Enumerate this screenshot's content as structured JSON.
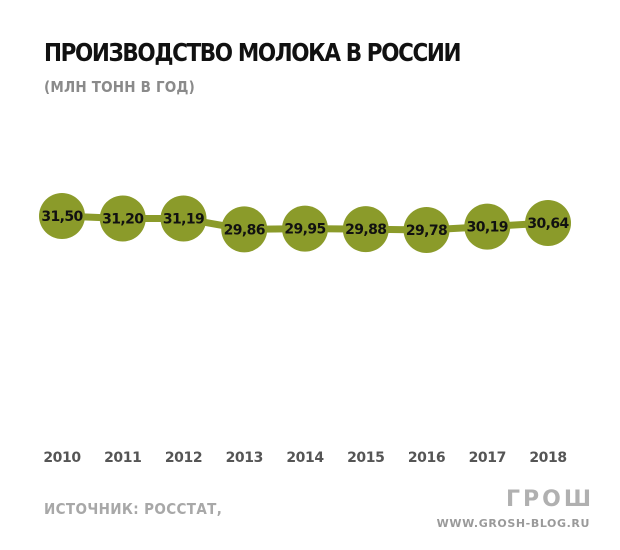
{
  "header": {
    "title": "ПРОИЗВОДСТВО МОЛОКА В РОССИИ",
    "subtitle": "(МЛН ТОНН В ГОД)"
  },
  "footer": {
    "source": "ИСТОЧНИК: РОССТАТ,",
    "logo": "ГРОШ",
    "site": "WWW.GROSH-BLOG.RU"
  },
  "colors": {
    "accent": "#8b9b2a",
    "point_label": "#111111",
    "year_label": "#555555"
  },
  "chart_data": {
    "type": "line",
    "title": "ПРОИЗВОДСТВО МОЛОКА В РОССИИ",
    "subtitle": "(МЛН ТОНН В ГОД)",
    "x": [
      "2010",
      "2011",
      "2012",
      "2013",
      "2014",
      "2015",
      "2016",
      "2017",
      "2018"
    ],
    "y": [
      31.5,
      31.2,
      31.19,
      29.86,
      29.95,
      29.88,
      29.78,
      30.19,
      30.64
    ],
    "data_labels": [
      "31,50",
      "31,20",
      "31,19",
      "29,86",
      "29,95",
      "29,88",
      "29,78",
      "30,19",
      "30,64"
    ],
    "xlabel": "",
    "ylabel": "",
    "grid": false,
    "legend": "none"
  }
}
